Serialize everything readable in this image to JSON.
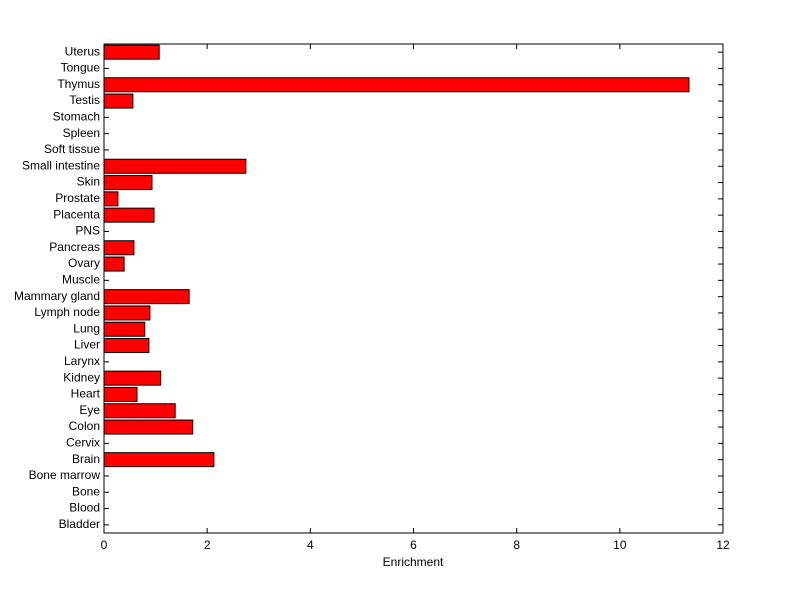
{
  "chart_data": {
    "type": "barh",
    "categories": [
      "Uterus",
      "Tongue",
      "Thymus",
      "Testis",
      "Stomach",
      "Spleen",
      "Soft tissue",
      "Small intestine",
      "Skin",
      "Prostate",
      "Placenta",
      "PNS",
      "Pancreas",
      "Ovary",
      "Muscle",
      "Mammary gland",
      "Lymph node",
      "Lung",
      "Liver",
      "Larynx",
      "Kidney",
      "Heart",
      "Eye",
      "Colon",
      "Cervix",
      "Brain",
      "Bone marrow",
      "Bone",
      "Blood",
      "Bladder"
    ],
    "values": [
      1.07,
      0,
      11.34,
      0.56,
      0,
      0,
      0,
      2.75,
      0.93,
      0.27,
      0.97,
      0,
      0.58,
      0.39,
      0,
      1.65,
      0.89,
      0.79,
      0.87,
      0,
      1.1,
      0.64,
      1.38,
      1.72,
      0,
      2.13,
      0,
      0,
      0,
      0
    ],
    "color": "#ff0000",
    "xlim": [
      0,
      12
    ],
    "xticks": [
      0,
      2,
      4,
      6,
      8,
      10,
      12
    ],
    "xlabel": "Enrichment"
  }
}
